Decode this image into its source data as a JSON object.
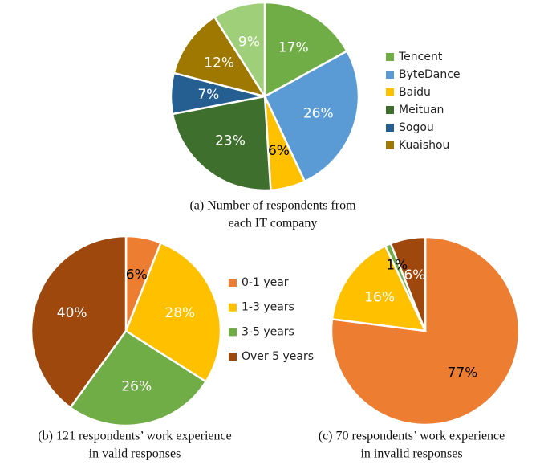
{
  "chart_data": [
    {
      "type": "pie",
      "caption": [
        "(a)  Number of respondents from",
        "each IT company"
      ],
      "categories": [
        "Tencent",
        "ByteDance",
        "Baidu",
        "Meituan",
        "Sogou",
        "Kuaishou",
        null
      ],
      "values": [
        17,
        26,
        6,
        23,
        7,
        12,
        9
      ],
      "value_labels": [
        "17%",
        "26%",
        "6%",
        "23%",
        "7%",
        "12%",
        "9%"
      ],
      "colors": [
        "#70ad47",
        "#5b9bd5",
        "#ffc000",
        "#3f6f2c",
        "#255e91",
        "#9e7800",
        "#a0cf7a"
      ],
      "label_colors": [
        "#fff",
        "#fff",
        "#000",
        "#fff",
        "#fff",
        "#fff",
        "#fff"
      ],
      "legend": true
    },
    {
      "type": "pie",
      "caption": [
        "(b) 121 respondents’ work experience",
        "in valid responses"
      ],
      "categories": [
        "0-1 year",
        "1-3 years",
        "3-5 years",
        "Over 5 years"
      ],
      "values": [
        6,
        28,
        26,
        40
      ],
      "value_labels": [
        "6%",
        "28%",
        "26%",
        "40%"
      ],
      "colors": [
        "#ed7d31",
        "#ffc000",
        "#70ad47",
        "#9e480e"
      ],
      "label_colors": [
        "#000",
        "#fff",
        "#fff",
        "#fff"
      ],
      "legend": true
    },
    {
      "type": "pie",
      "caption": [
        "(c) 70 respondents’ work experience",
        "in invalid responses"
      ],
      "values": [
        77,
        16,
        1,
        6
      ],
      "value_labels": [
        "77%",
        "16%",
        "1%",
        "6%"
      ],
      "colors": [
        "#ed7d31",
        "#ffc000",
        "#70ad47",
        "#9e480e"
      ],
      "label_colors": [
        "#000",
        "#fff",
        "#000",
        "#fff"
      ],
      "legend": false
    }
  ]
}
